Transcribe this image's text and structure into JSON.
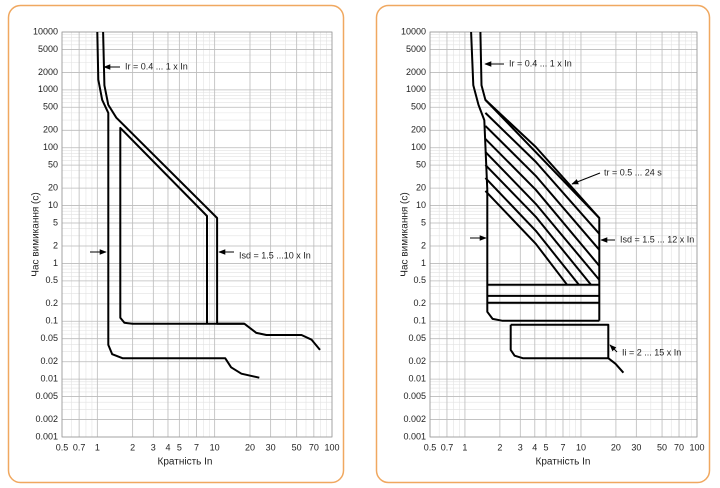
{
  "chart_data": [
    {
      "type": "line",
      "xlabel": "Кратність In",
      "ylabel": "Час вимикання (с)",
      "xscale": "log",
      "yscale": "log",
      "xlim": [
        0.5,
        100
      ],
      "ylim": [
        0.001,
        10000
      ],
      "xticks": [
        0.5,
        0.7,
        1,
        2,
        3,
        4,
        5,
        7,
        10,
        20,
        30,
        50,
        70,
        100
      ],
      "yticks": [
        0.001,
        0.002,
        0.005,
        0.01,
        0.02,
        0.05,
        0.1,
        0.2,
        0.5,
        1,
        2,
        5,
        10,
        20,
        50,
        100,
        200,
        500,
        1000,
        2000,
        5000,
        10000
      ],
      "grid": true,
      "series": [
        {
          "color": "#000000",
          "x": [
            1.0,
            1.02,
            1.1,
            1.24,
            1.24,
            1.34,
            1.64,
            12.3,
            13.8,
            16.9,
            24
          ],
          "values": [
            10000,
            1500,
            670,
            400,
            0.039,
            0.027,
            0.023,
            0.023,
            0.016,
            0.0124,
            0.0106
          ]
        },
        {
          "color": "#000000",
          "x": [
            1.12,
            1.15,
            1.24,
            1.45,
            10.5,
            10.5,
            17.9,
            22.7,
            27.6,
            55,
            67,
            79
          ],
          "values": [
            10000,
            1200,
            550,
            330,
            6.1,
            0.091,
            0.091,
            0.063,
            0.058,
            0.058,
            0.048,
            0.032
          ]
        },
        {
          "color": "#000000",
          "x": [
            8.6,
            8.6,
            1.57,
            1.57,
            1.7,
            2.0,
            17.9
          ],
          "values": [
            0.091,
            6.6,
            220,
            0.115,
            0.094,
            0.091,
            0.091
          ]
        }
      ],
      "annotations": [
        "Ir = 0.4 ... 1 x In",
        "Isd = 1.5 ...10 x In"
      ]
    },
    {
      "type": "line",
      "xlabel": "Кратність In",
      "ylabel": "Час вимикання (с)",
      "xscale": "log",
      "yscale": "log",
      "xlim": [
        0.5,
        100
      ],
      "ylim": [
        0.001,
        10000
      ],
      "xticks": [
        0.5,
        0.7,
        1,
        2,
        3,
        4,
        5,
        7,
        10,
        20,
        30,
        50,
        70,
        100
      ],
      "yticks": [
        0.001,
        0.002,
        0.005,
        0.01,
        0.02,
        0.05,
        0.1,
        0.2,
        0.5,
        1,
        2,
        5,
        10,
        20,
        50,
        100,
        200,
        500,
        1000,
        2000,
        5000,
        10000
      ],
      "grid": true,
      "series": [
        {
          "color": "#000000",
          "x": [
            1.13,
            1.18,
            1.31,
            1.47,
            1.56,
            1.56,
            1.73,
            2.11,
            14.4
          ],
          "values": [
            10000,
            1200,
            550,
            300,
            18.7,
            0.146,
            0.11,
            0.102,
            0.102
          ]
        },
        {
          "color": "#000000",
          "x": [
            1.36,
            1.39,
            1.5,
            14.4,
            14.4
          ],
          "values": [
            10000,
            1200,
            670,
            6.1,
            0.102
          ]
        },
        {
          "color": "#000000",
          "x": [
            1.5,
            4.08,
            14.4
          ],
          "values": [
            670,
            103,
            6.1
          ]
        },
        {
          "color": "#000000",
          "x": [
            1.5,
            4.08,
            14.4
          ],
          "values": [
            400,
            56.9,
            3.25
          ]
        },
        {
          "color": "#000000",
          "x": [
            1.5,
            4.08,
            14.4
          ],
          "values": [
            238,
            32.6,
            1.72
          ]
        },
        {
          "color": "#000000",
          "x": [
            1.5,
            4.08,
            14.4
          ],
          "values": [
            142,
            18.7,
            0.91
          ]
        },
        {
          "color": "#000000",
          "x": [
            1.5,
            4.08,
            14.4
          ],
          "values": [
            84.6,
            10.7,
            0.52
          ]
        },
        {
          "color": "#000000",
          "x": [
            1.5,
            4.08,
            12.2
          ],
          "values": [
            50.5,
            6.4,
            0.427
          ]
        },
        {
          "color": "#000000",
          "x": [
            1.5,
            4.08,
            9.6
          ],
          "values": [
            30.1,
            3.66,
            0.427
          ]
        },
        {
          "color": "#000000",
          "x": [
            1.5,
            4.08,
            7.6
          ],
          "values": [
            17.9,
            2.18,
            0.427
          ]
        },
        {
          "color": "#000000",
          "x": [
            1.56,
            14.4
          ],
          "values": [
            0.427,
            0.427
          ]
        },
        {
          "color": "#000000",
          "x": [
            1.56,
            14.4
          ],
          "values": [
            0.275,
            0.275
          ]
        },
        {
          "color": "#000000",
          "x": [
            1.56,
            14.4
          ],
          "values": [
            0.209,
            0.209
          ]
        },
        {
          "color": "#000000",
          "x": [
            2.48,
            2.48,
            2.68,
            3.15,
            17.2,
            19.8,
            23.2
          ],
          "values": [
            0.087,
            0.032,
            0.0254,
            0.023,
            0.023,
            0.0185,
            0.0129
          ]
        },
        {
          "color": "#000000",
          "x": [
            2.48,
            17.2,
            17.2
          ],
          "values": [
            0.087,
            0.087,
            0.023
          ]
        }
      ],
      "annotations": [
        "Ir = 0.4 ... 1 x In",
        "tr = 0.5 ... 24 s",
        "Isd = 1.5 ... 12 x In",
        "Ii = 2 ... 15 x In"
      ]
    }
  ]
}
